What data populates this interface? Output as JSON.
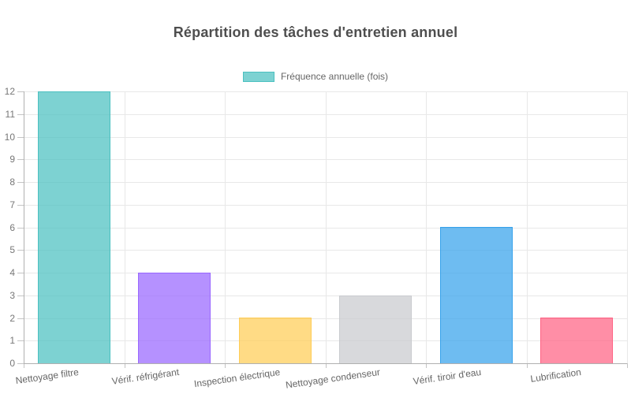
{
  "title": "Répartition des tâches d'entretien annuel",
  "legend": {
    "items": [
      {
        "label": "Fréquence annuelle (fois)",
        "fill": "rgba(75, 192, 192, 0.72)",
        "border": "rgb(75, 192, 192)"
      }
    ]
  },
  "chart_data": {
    "type": "bar",
    "title": "Répartition des tâches d'entretien annuel",
    "categories": [
      "Nettoyage filtre",
      "Vérif. réfrigérant",
      "Inspection électrique",
      "Nettoyage condenseur",
      "Vérif. tiroir d'eau",
      "Lubrification"
    ],
    "series": [
      {
        "name": "Fréquence annuelle (fois)",
        "values": [
          12,
          4,
          2,
          3,
          6,
          2
        ],
        "fills": [
          "rgba(75, 192, 192, 0.72)",
          "rgba(153, 102, 255, 0.72)",
          "rgba(255, 205, 86, 0.72)",
          "rgba(201, 203, 207, 0.72)",
          "rgba(54, 162, 235, 0.72)",
          "rgba(255, 99, 132, 0.72)"
        ],
        "borders": [
          "rgb(75, 192, 192)",
          "rgb(153, 102, 255)",
          "rgb(255, 205, 86)",
          "rgb(201, 203, 207)",
          "rgb(54, 162, 235)",
          "rgb(255, 99, 132)"
        ]
      }
    ],
    "xlabel": "",
    "ylabel": "",
    "ylim": [
      0,
      12
    ],
    "ytick_step": 1,
    "yticks": [
      0,
      1,
      2,
      3,
      4,
      5,
      6,
      7,
      8,
      9,
      10,
      11,
      12
    ],
    "grid": true,
    "legend_position": "top",
    "x_label_rotation_deg": -8
  }
}
